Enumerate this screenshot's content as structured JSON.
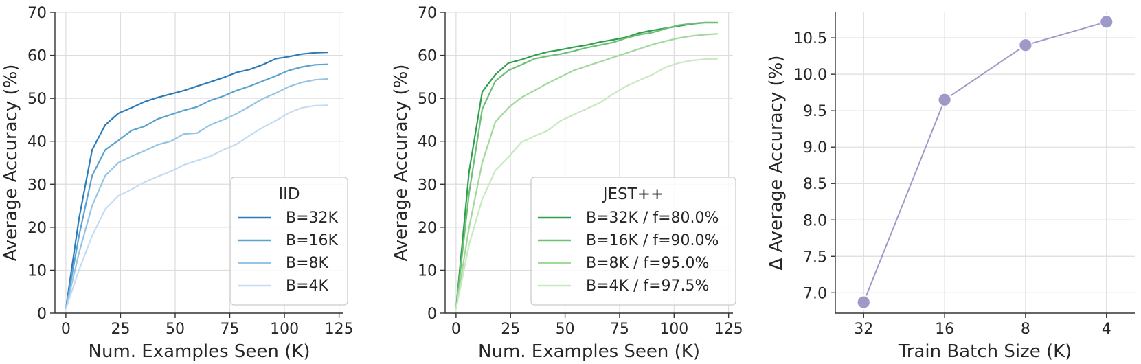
{
  "chart_data": [
    {
      "type": "line",
      "xlabel": "Num. Examples Seen (K)",
      "ylabel": "Average Accuracy (%)",
      "xlim": [
        -5,
        127
      ],
      "ylim": [
        0,
        70
      ],
      "xticks": [
        0,
        25,
        50,
        75,
        100,
        125
      ],
      "yticks": [
        0,
        10,
        20,
        30,
        40,
        50,
        60,
        70
      ],
      "grid": true,
      "legend_title": "IID",
      "legend_position": "lower-right",
      "series": [
        {
          "name": "B=32K",
          "color": "#2b7bba",
          "x": [
            0,
            6,
            12,
            18,
            24,
            30,
            36,
            42,
            48,
            54,
            60,
            66,
            72,
            78,
            84,
            90,
            96,
            102,
            108,
            114,
            120
          ],
          "y": [
            1,
            22,
            38,
            43.8,
            46.5,
            47.8,
            49.2,
            50.2,
            51,
            51.8,
            52.8,
            53.8,
            54.8,
            56,
            56.7,
            57.8,
            59.2,
            59.7,
            60.3,
            60.6,
            60.7
          ]
        },
        {
          "name": "B=16K",
          "color": "#5aa2cf",
          "x": [
            0,
            6,
            12,
            18,
            24,
            30,
            36,
            42,
            48,
            54,
            60,
            66,
            72,
            78,
            84,
            90,
            96,
            102,
            108,
            114,
            120
          ],
          "y": [
            1,
            18,
            32,
            38,
            40.2,
            42.5,
            43.5,
            45.2,
            46.2,
            47.2,
            48,
            49.5,
            50.5,
            51.8,
            52.8,
            54,
            55.2,
            56.5,
            57.3,
            57.8,
            57.9
          ]
        },
        {
          "name": "B=8K",
          "color": "#95c4e4",
          "x": [
            0,
            6,
            12,
            18,
            24,
            30,
            36,
            42,
            48,
            54,
            60,
            66,
            72,
            78,
            84,
            90,
            96,
            102,
            108,
            114,
            120
          ],
          "y": [
            1,
            14,
            25,
            32,
            35,
            36.5,
            37.8,
            39.2,
            40,
            41.7,
            41.9,
            43.8,
            45,
            46.4,
            48.1,
            49.9,
            51.2,
            52.7,
            53.7,
            54.3,
            54.5
          ]
        },
        {
          "name": "B=4K",
          "color": "#c4dcf1",
          "x": [
            0,
            6,
            12,
            18,
            24,
            30,
            36,
            42,
            48,
            54,
            60,
            66,
            72,
            78,
            84,
            90,
            96,
            102,
            108,
            114,
            120
          ],
          "y": [
            1,
            10,
            18,
            24.2,
            27.3,
            28.8,
            30.5,
            31.8,
            33,
            34.5,
            35.5,
            36.5,
            38,
            39.3,
            41.3,
            43.2,
            44.8,
            46.6,
            47.8,
            48.3,
            48.4
          ]
        }
      ]
    },
    {
      "type": "line",
      "xlabel": "Num. Examples Seen (K)",
      "ylabel": "Average Accuracy (%)",
      "xlim": [
        -5,
        127
      ],
      "ylim": [
        0,
        70
      ],
      "xticks": [
        0,
        25,
        50,
        75,
        100,
        125
      ],
      "yticks": [
        0,
        10,
        20,
        30,
        40,
        50,
        60,
        70
      ],
      "grid": true,
      "legend_title": "JEST++",
      "legend_position": "lower-right",
      "series": [
        {
          "name": "B=32K / f=80.0%",
          "color": "#2e9e4f",
          "x": [
            0,
            6,
            12,
            18,
            24,
            30,
            36,
            42,
            48,
            54,
            60,
            66,
            72,
            78,
            84,
            90,
            96,
            102,
            108,
            114,
            120
          ],
          "y": [
            1,
            33,
            51.5,
            55.5,
            58.2,
            59,
            60,
            60.8,
            61.3,
            61.9,
            62.4,
            63.1,
            63.6,
            64.2,
            65.2,
            65.8,
            66.3,
            66.8,
            67.3,
            67.6,
            67.6
          ]
        },
        {
          "name": "B=16K / f=90.0%",
          "color": "#6cbf74",
          "x": [
            0,
            6,
            12,
            18,
            24,
            30,
            36,
            42,
            48,
            54,
            60,
            66,
            72,
            78,
            84,
            90,
            96,
            102,
            108,
            114,
            120
          ],
          "y": [
            1,
            28,
            47.5,
            54,
            56.5,
            57.8,
            59.2,
            59.8,
            60.3,
            61,
            61.8,
            62.4,
            63,
            64,
            64.8,
            65.3,
            66.2,
            67,
            67.4,
            67.6,
            67.6
          ]
        },
        {
          "name": "B=8K / f=95.0%",
          "color": "#a1d99b",
          "x": [
            0,
            6,
            12,
            18,
            24,
            30,
            36,
            42,
            48,
            54,
            60,
            66,
            72,
            78,
            84,
            90,
            96,
            102,
            108,
            114,
            120
          ],
          "y": [
            1,
            20,
            35,
            44.5,
            47.8,
            50.2,
            51.8,
            53.5,
            55,
            56.5,
            57.5,
            58.5,
            59.5,
            60.5,
            61.5,
            62.5,
            63.3,
            64,
            64.5,
            64.8,
            65
          ]
        },
        {
          "name": "B=4K / f=97.5%",
          "color": "#c7e9c0",
          "x": [
            0,
            6,
            12,
            18,
            24,
            30,
            36,
            42,
            48,
            54,
            60,
            66,
            72,
            78,
            84,
            90,
            96,
            102,
            108,
            114,
            120
          ],
          "y": [
            1,
            16,
            26.5,
            33.2,
            36.3,
            39.8,
            41.2,
            42.5,
            44.8,
            46.2,
            47.6,
            49,
            51,
            52.8,
            54.2,
            55.5,
            57.2,
            58.2,
            58.8,
            59.1,
            59.2
          ]
        }
      ]
    },
    {
      "type": "line",
      "xlabel": "Train Batch Size (K)",
      "ylabel": "Δ Average Accuracy (%)",
      "categories": [
        "32",
        "16",
        "8",
        "4"
      ],
      "ylim": [
        6.72,
        10.85
      ],
      "yticks": [
        7.0,
        7.5,
        8.0,
        8.5,
        9.0,
        9.5,
        10.0,
        10.5
      ],
      "ytick_labels": [
        "7.0",
        "7.5",
        "8.0",
        "8.5",
        "9.0",
        "9.5",
        "10.0",
        "10.5"
      ],
      "grid": true,
      "series": [
        {
          "color": "#9e9ac8",
          "marker": "circle",
          "values": [
            6.87,
            9.65,
            10.4,
            10.72
          ]
        }
      ]
    }
  ]
}
